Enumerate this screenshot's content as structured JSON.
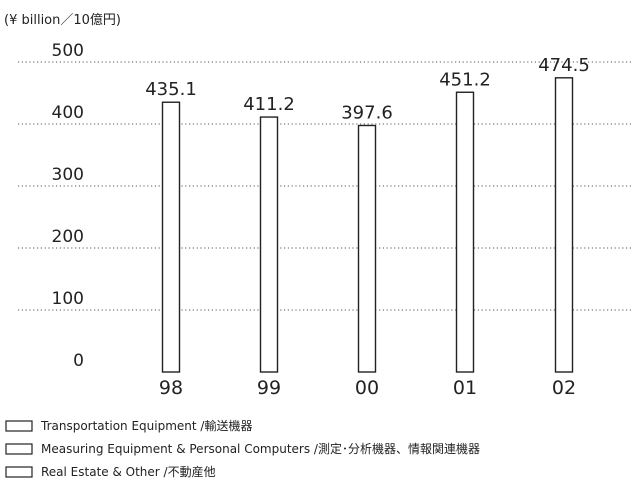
{
  "chart_data": {
    "type": "bar",
    "unit_label": "(¥ billion／10億円)",
    "categories": [
      "98",
      "99",
      "00",
      "01",
      "02"
    ],
    "values": [
      435.1,
      411.2,
      397.6,
      451.2,
      474.5
    ],
    "value_labels": [
      "435.1",
      "411.2",
      "397.6",
      "451.2",
      "474.5"
    ],
    "yticks": [
      "0",
      "100",
      "200",
      "300",
      "400",
      "500"
    ],
    "ylim": [
      0,
      500
    ],
    "grid": true,
    "legend": [
      {
        "name": "Transportation Equipment /輸送機器"
      },
      {
        "name": "Measuring Equipment & Personal Computers /測定･分析機器、情報関連機器"
      },
      {
        "name": "Real Estate & Other /不動産他"
      }
    ],
    "legend_position": "bottom-left"
  }
}
